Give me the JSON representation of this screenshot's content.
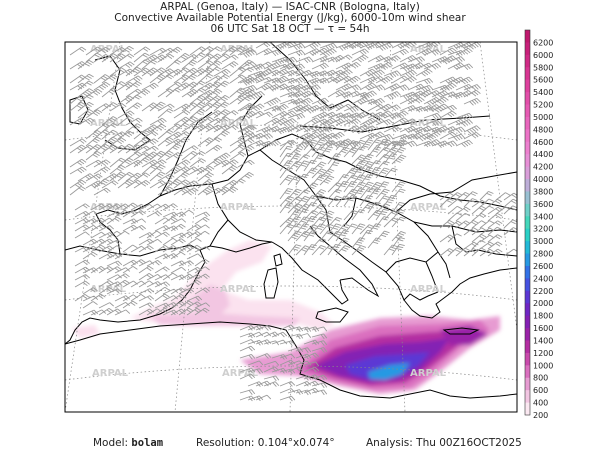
{
  "title": {
    "line1": "ARPAL (Genoa, Italy)  —  ISAC-CNR (Bologna, Italy)",
    "line2": "Convective Available Potential Energy (J/kg), 6000-10m wind shear",
    "line3": "06 UTC Sat 18 OCT  —  τ = 54h"
  },
  "colorbar": {
    "labels": [
      "6200",
      "6000",
      "5800",
      "5600",
      "5400",
      "5200",
      "5000",
      "4800",
      "4600",
      "4400",
      "4200",
      "4000",
      "3800",
      "3600",
      "3400",
      "3200",
      "3000",
      "2800",
      "2600",
      "2400",
      "2200",
      "2000",
      "1800",
      "1600",
      "1400",
      "1200",
      "1000",
      "800",
      "600",
      "400",
      "200"
    ],
    "colors": [
      "#c0186e",
      "#c8207a",
      "#d02a86",
      "#d83592",
      "#de419e",
      "#e24ea9",
      "#e65ab3",
      "#e966bd",
      "#ec73c7",
      "#ed80cf",
      "#e78fd6",
      "#d99ed9",
      "#bdaed8",
      "#99c0d2",
      "#6fd0c8",
      "#44d7bb",
      "#2ad0c6",
      "#22b9d7",
      "#2799e3",
      "#3272e7",
      "#4552e1",
      "#5b37d4",
      "#6f26c4",
      "#8420b4",
      "#9a22a8",
      "#b42ea2",
      "#c94aac",
      "#da6fbf",
      "#e79bd2",
      "#f2c6e2",
      "#fbe8f1"
    ]
  },
  "map": {
    "watermark": "ARPAL",
    "wind_barb_color": "#9a9a9a",
    "coast_color": "#000000",
    "grid_color": "#888888"
  },
  "footer": {
    "model_label": "Model:",
    "model_value": "bolam",
    "resolution_label": "Resolution:",
    "resolution_value": "0.104°x0.074°",
    "analysis_label": "Analysis:",
    "analysis_value": "Thu 00Z16OCT2025"
  }
}
